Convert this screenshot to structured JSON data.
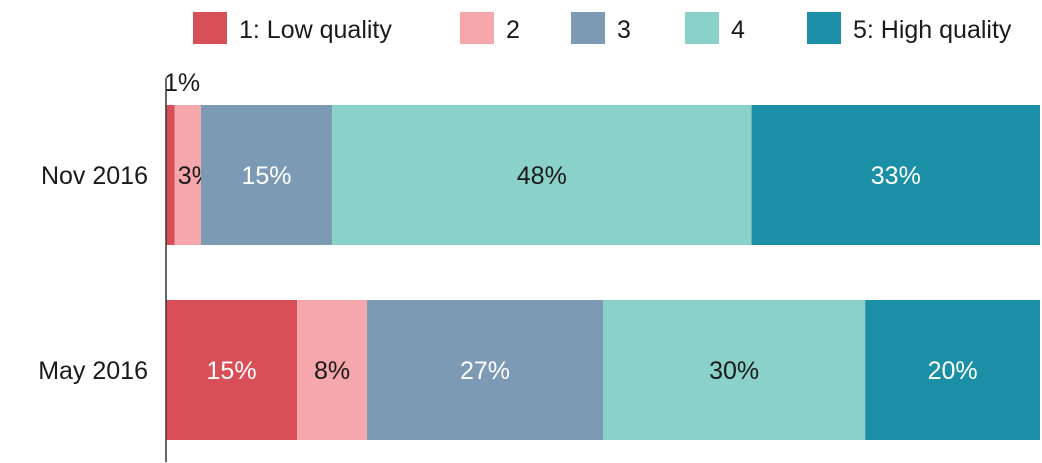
{
  "chart_data": {
    "type": "bar",
    "orientation": "horizontal",
    "stacked": true,
    "categories": [
      "Nov 2016",
      "May 2016"
    ],
    "series": [
      {
        "name": "1: Low quality",
        "values": [
          1,
          15
        ],
        "color": "#d94f58",
        "labels": [
          "1%",
          "15%"
        ],
        "label_color": "#ffffff"
      },
      {
        "name": "2",
        "values": [
          3,
          8
        ],
        "color": "#f5a7ac",
        "labels": [
          "3%",
          "8%"
        ],
        "label_color": "#1a1a1a"
      },
      {
        "name": "3",
        "values": [
          15,
          27
        ],
        "color": "#7d9ab5",
        "labels": [
          "15%",
          "27%"
        ],
        "label_color": "#ffffff"
      },
      {
        "name": "4",
        "values": [
          48,
          30
        ],
        "color": "#8ad2c9",
        "labels": [
          "48%",
          "30%"
        ],
        "label_color": "#1a1a1a"
      },
      {
        "name": "5: High quality",
        "values": [
          33,
          20
        ],
        "color": "#1a8fa6",
        "labels": [
          "33%",
          "20%"
        ],
        "label_color": "#ffffff"
      }
    ],
    "xlim": [
      0,
      100
    ],
    "legend_position": "top-right",
    "grid": false
  }
}
